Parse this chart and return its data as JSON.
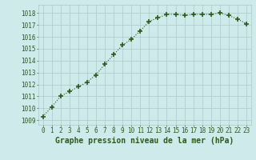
{
  "x": [
    0,
    1,
    2,
    3,
    4,
    5,
    6,
    7,
    8,
    9,
    10,
    11,
    12,
    13,
    14,
    15,
    16,
    17,
    18,
    19,
    20,
    21,
    22,
    23
  ],
  "y": [
    1009.3,
    1010.1,
    1011.0,
    1011.4,
    1011.8,
    1012.2,
    1012.8,
    1013.7,
    1014.5,
    1015.3,
    1015.8,
    1016.5,
    1017.3,
    1017.6,
    1017.9,
    1017.9,
    1017.8,
    1017.9,
    1017.9,
    1017.9,
    1018.0,
    1017.8,
    1017.5,
    1017.1
  ],
  "line_color": "#2d5a1b",
  "marker": "+",
  "marker_size": 4,
  "bg_color": "#ceeaea",
  "grid_color": "#adc8c8",
  "xlabel": "Graphe pression niveau de la mer (hPa)",
  "xlabel_fontsize": 7,
  "xlabel_color": "#2d5a1b",
  "ytick_labels": [
    1009,
    1010,
    1011,
    1012,
    1013,
    1014,
    1015,
    1016,
    1017,
    1018
  ],
  "ylim": [
    1008.6,
    1018.7
  ],
  "xlim": [
    -0.5,
    23.5
  ],
  "xtick_labels": [
    "0",
    "1",
    "2",
    "3",
    "4",
    "5",
    "6",
    "7",
    "8",
    "9",
    "10",
    "11",
    "12",
    "13",
    "14",
    "15",
    "16",
    "17",
    "18",
    "19",
    "20",
    "21",
    "22",
    "23"
  ],
  "tick_fontsize": 5.5,
  "tick_color": "#2d5a1b"
}
